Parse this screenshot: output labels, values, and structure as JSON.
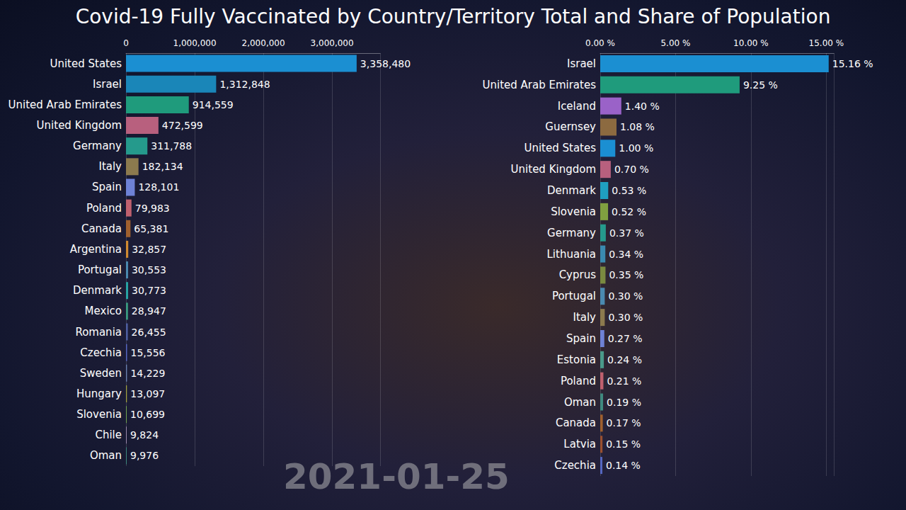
{
  "title": "Covid-19 Fully Vaccinated by Country/Territory Total and Share of Population",
  "date": "2021-01-25",
  "chart_data": [
    {
      "type": "bar",
      "orientation": "horizontal",
      "grid": true,
      "data_labels": true,
      "categories": [
        "United States",
        "Israel",
        "United Arab Emirates",
        "United Kingdom",
        "Germany",
        "Italy",
        "Spain",
        "Poland",
        "Canada",
        "Argentina",
        "Portugal",
        "Denmark",
        "Mexico",
        "Romania",
        "Czechia",
        "Sweden",
        "Hungary",
        "Slovenia",
        "Chile",
        "Oman"
      ],
      "values": [
        3358480,
        1312848,
        914559,
        472599,
        311788,
        182134,
        128101,
        79983,
        65381,
        32857,
        30553,
        30773,
        28947,
        26455,
        15556,
        14229,
        13097,
        10699,
        9824,
        9976
      ],
      "value_labels": [
        "3,358,480",
        "1,312,848",
        "914,559",
        "472,599",
        "311,788",
        "182,134",
        "128,101",
        "79,983",
        "65,381",
        "32,857",
        "30,553",
        "30,773",
        "28,947",
        "26,455",
        "15,556",
        "14,229",
        "13,097",
        "10,699",
        "9,824",
        "9,976"
      ],
      "colors": [
        "#1b8fd2",
        "#1a86b8",
        "#1f9b7c",
        "#b8607e",
        "#259a8c",
        "#8c7a4e",
        "#6e82d6",
        "#c0606e",
        "#a0602e",
        "#d08a30",
        "#4a8ab0",
        "#27a3a3",
        "#3a9a80",
        "#4e5ea0",
        "#5566c0",
        "#6a80b0",
        "#a0a040",
        "#70a050",
        "#a08cb0",
        "#3f8a80"
      ],
      "xlim": [
        0,
        3700000
      ],
      "xticks": [
        0,
        {
          "value": 1000000,
          "label": "1,000,000"
        },
        {
          "value": 2000000,
          "label": "2,000,000"
        },
        {
          "value": 3000000,
          "label": "3,000,000"
        }
      ]
    },
    {
      "type": "bar",
      "orientation": "horizontal",
      "grid": true,
      "data_labels": true,
      "categories": [
        "Israel",
        "United Arab Emirates",
        "Iceland",
        "Guernsey",
        "United States",
        "United Kingdom",
        "Denmark",
        "Slovenia",
        "Germany",
        "Lithuania",
        "Cyprus",
        "Portugal",
        "Italy",
        "Spain",
        "Estonia",
        "Poland",
        "Oman",
        "Canada",
        "Latvia",
        "Czechia"
      ],
      "values": [
        15.16,
        9.25,
        1.4,
        1.08,
        1.0,
        0.7,
        0.53,
        0.52,
        0.37,
        0.34,
        0.35,
        0.3,
        0.3,
        0.27,
        0.24,
        0.21,
        0.19,
        0.17,
        0.15,
        0.14
      ],
      "value_labels": [
        "15.16 %",
        "9.25 %",
        "1.40 %",
        "1.08 %",
        "1.00 %",
        "0.70 %",
        "0.53 %",
        "0.52 %",
        "0.37 %",
        "0.34 %",
        "0.35 %",
        "0.30 %",
        "0.30 %",
        "0.27 %",
        "0.24 %",
        "0.21 %",
        "0.19 %",
        "0.17 %",
        "0.15 %",
        "0.14 %"
      ],
      "colors": [
        "#1b8fd2",
        "#1f9b7c",
        "#9a62c8",
        "#8c6a40",
        "#1b8fd2",
        "#b8607e",
        "#1f9fc0",
        "#80a040",
        "#259a8c",
        "#3a8ab0",
        "#7a8a40",
        "#4a8ab0",
        "#8c7a4e",
        "#6e82d6",
        "#4a9a8a",
        "#c0606e",
        "#3f8a80",
        "#a0602e",
        "#9a5030",
        "#5566c0"
      ],
      "xlim": [
        0,
        15.5
      ],
      "xticks": [
        {
          "value": 0,
          "label": "0.00 %"
        },
        {
          "value": 5,
          "label": "5.00 %"
        },
        {
          "value": 10,
          "label": "10.00 %"
        },
        {
          "value": 15,
          "label": "15.00 %"
        }
      ]
    }
  ]
}
